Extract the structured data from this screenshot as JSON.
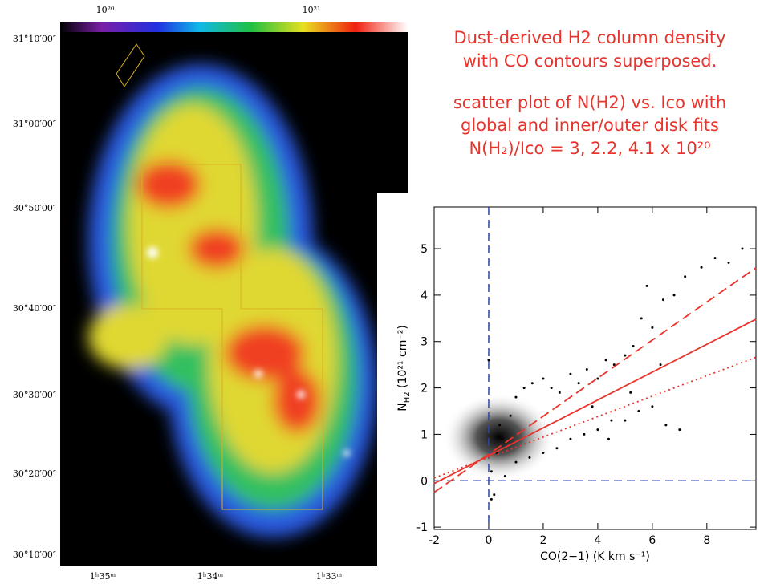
{
  "map": {
    "colorbar_labels": [
      "10²⁰",
      "10²¹"
    ],
    "dec_labels": [
      "31°10′00″",
      "31°00′00″",
      "30°50′00″",
      "30°40′00″",
      "30°30′00″",
      "30°20′00″",
      "30°10′00″"
    ],
    "ra_labels": [
      "1ʰ35ᵐ",
      "1ʰ34ᵐ",
      "1ʰ33ᵐ"
    ]
  },
  "notes": [
    "Dust-derived H2 column density",
    "with CO contours superposed.",
    "scatter plot of N(H2) vs. Ico with",
    "global and inner/outer disk fits",
    "N(H₂)/Ico = 3, 2.2, 4.1 x 10²⁰"
  ],
  "chart_data": {
    "type": "scatter",
    "x_label": "CO(2−1) (K km s⁻¹)",
    "y_label": {
      "main": "N",
      "sub": "H2",
      "rest": " (10²¹ cm⁻²)"
    },
    "xlim": [
      -2,
      9.8
    ],
    "ylim": [
      -1.05,
      5.9
    ],
    "xticks": [
      -2,
      0,
      2,
      4,
      6,
      8
    ],
    "yticks": [
      -1,
      0,
      1,
      2,
      3,
      4,
      5
    ],
    "reference_lines": {
      "x": 0,
      "y": 0,
      "color": "#2b45a8"
    },
    "points": {
      "color": "#000000",
      "x": [
        0.1,
        0.3,
        0.5,
        0.2,
        0.8,
        1.0,
        1.3,
        1.6,
        2.0,
        2.3,
        2.6,
        3.0,
        3.3,
        3.6,
        4.0,
        4.3,
        4.6,
        5.0,
        5.3,
        5.6,
        6.0,
        6.3,
        1.0,
        1.5,
        2.0,
        2.5,
        3.0,
        3.5,
        4.0,
        4.5,
        5.0,
        5.5,
        6.0,
        6.5,
        7.0,
        5.8,
        6.4,
        7.2,
        7.8,
        8.3,
        8.8,
        9.3,
        0.0,
        0.1,
        0.4,
        0.6,
        3.8,
        4.4,
        5.2,
        6.8
      ],
      "values": [
        0.2,
        0.6,
        0.9,
        -0.3,
        1.4,
        1.8,
        2.0,
        2.1,
        2.2,
        2.0,
        1.9,
        2.3,
        2.1,
        2.4,
        2.2,
        2.6,
        2.5,
        2.7,
        2.9,
        3.5,
        3.3,
        2.5,
        0.4,
        0.5,
        0.6,
        0.7,
        0.9,
        1.0,
        1.1,
        1.3,
        1.3,
        1.5,
        1.6,
        1.2,
        1.1,
        4.2,
        3.9,
        4.4,
        4.6,
        4.8,
        4.7,
        5.0,
        2.6,
        -0.4,
        1.2,
        0.1,
        1.6,
        0.9,
        1.9,
        4.0
      ]
    },
    "fits": [
      {
        "color": "#e8342c",
        "dash": "solid",
        "x": [
          -2,
          9.8
        ],
        "values": [
          -0.06,
          3.48
        ]
      },
      {
        "color": "#e8342c",
        "dash": "dashed",
        "x": [
          -2,
          9.8
        ],
        "values": [
          -0.25,
          4.59
        ]
      },
      {
        "color": "#e8342c",
        "dash": "dotted",
        "x": [
          -2,
          9.8
        ],
        "values": [
          0.06,
          2.66
        ]
      }
    ]
  }
}
